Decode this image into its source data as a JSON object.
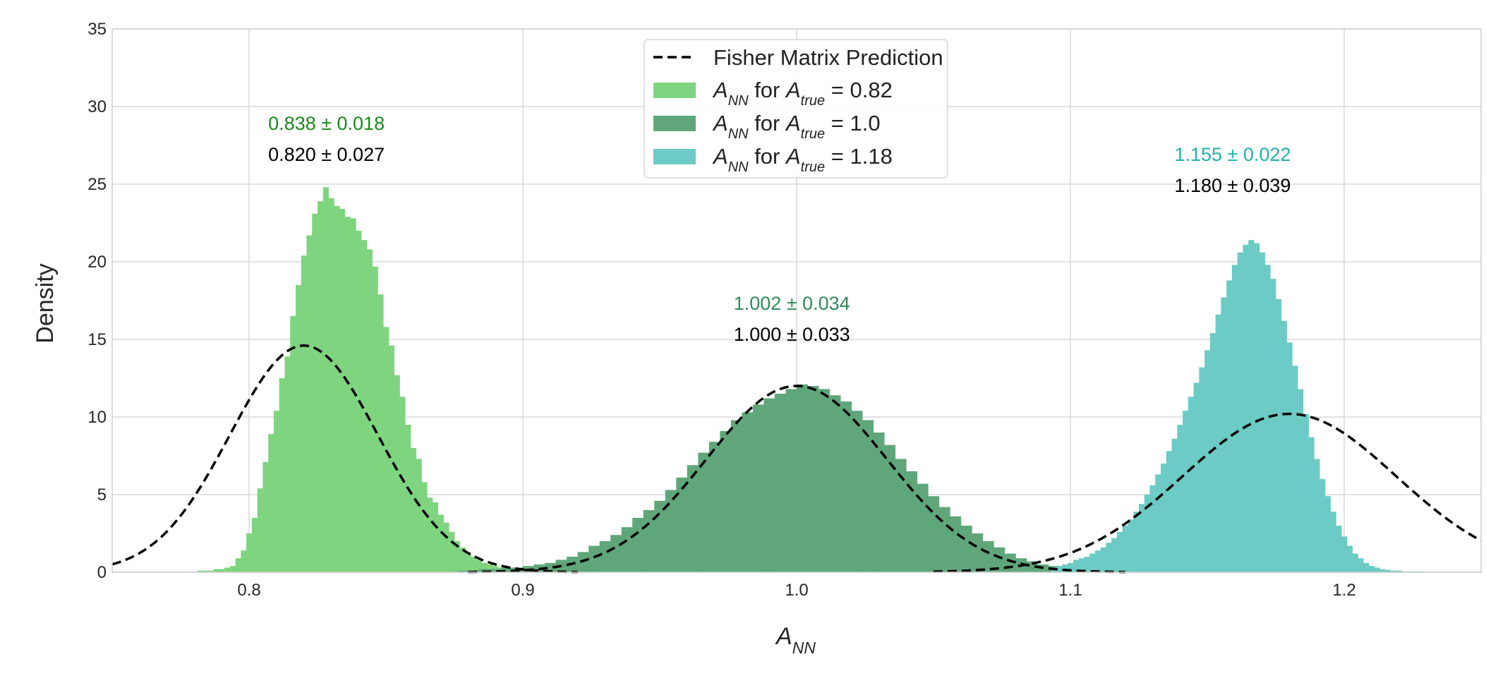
{
  "chart_data": {
    "type": "bar",
    "xlabel": "A_NN",
    "ylabel": "Density",
    "xlim": [
      0.75,
      1.25
    ],
    "ylim": [
      0,
      35
    ],
    "grid": true,
    "x_ticks": [
      "0.8",
      "0.9",
      "1.0",
      "1.1",
      "1.2"
    ],
    "x_tick_values": [
      0.8,
      0.9,
      1.0,
      1.1,
      1.2
    ],
    "y_ticks": [
      "0",
      "5",
      "10",
      "15",
      "20",
      "25",
      "30",
      "35"
    ],
    "y_tick_values": [
      0,
      5,
      10,
      15,
      20,
      25,
      30,
      35
    ],
    "legend": {
      "position": "top-center",
      "entries": [
        {
          "label": "Fisher Matrix Prediction",
          "style": "dashed-line",
          "color": "#000000"
        },
        {
          "label": "A_NN for A_true = 0.82",
          "style": "patch",
          "color": "#7fd47f"
        },
        {
          "label": "A_NN for A_true = 1.0",
          "style": "patch",
          "color": "#5fa77a"
        },
        {
          "label": "A_NN for A_true = 1.18",
          "style": "patch",
          "color": "#6ccbc4"
        }
      ]
    },
    "histograms": [
      {
        "color": "#7fd47f",
        "bin_width": 0.002,
        "x": [
          0.782,
          0.784,
          0.786,
          0.788,
          0.79,
          0.792,
          0.794,
          0.796,
          0.798,
          0.8,
          0.802,
          0.804,
          0.806,
          0.808,
          0.81,
          0.812,
          0.814,
          0.816,
          0.818,
          0.82,
          0.822,
          0.824,
          0.826,
          0.828,
          0.83,
          0.832,
          0.834,
          0.836,
          0.838,
          0.84,
          0.842,
          0.844,
          0.846,
          0.848,
          0.85,
          0.852,
          0.854,
          0.856,
          0.858,
          0.86,
          0.862,
          0.864,
          0.866,
          0.868,
          0.87,
          0.872,
          0.874,
          0.876,
          0.878,
          0.88,
          0.882,
          0.884,
          0.886,
          0.888,
          0.89,
          0.892,
          0.894,
          0.896,
          0.898,
          0.9
        ],
        "values": [
          0.1,
          0.1,
          0.1,
          0.2,
          0.2,
          0.3,
          0.4,
          0.9,
          1.4,
          2.5,
          3.5,
          5.4,
          7.1,
          8.9,
          10.4,
          12.5,
          13.9,
          16.5,
          18.5,
          20.4,
          21.7,
          23.1,
          23.9,
          24.8,
          24.1,
          23.6,
          23.4,
          22.9,
          22.8,
          22.0,
          21.4,
          20.8,
          19.7,
          17.9,
          15.8,
          14.6,
          12.7,
          11.3,
          9.5,
          8.0,
          7.3,
          5.8,
          4.8,
          4.5,
          3.7,
          3.2,
          2.6,
          2.0,
          1.6,
          1.3,
          1.0,
          0.8,
          0.6,
          0.5,
          0.4,
          0.3,
          0.2,
          0.2,
          0.1,
          0.1
        ]
      },
      {
        "color": "#5fa77a",
        "bin_width": 0.004,
        "x": [
          0.878,
          0.882,
          0.886,
          0.89,
          0.894,
          0.898,
          0.902,
          0.906,
          0.91,
          0.914,
          0.918,
          0.922,
          0.926,
          0.93,
          0.934,
          0.938,
          0.942,
          0.946,
          0.95,
          0.954,
          0.958,
          0.962,
          0.966,
          0.97,
          0.974,
          0.978,
          0.982,
          0.986,
          0.99,
          0.994,
          0.998,
          1.002,
          1.006,
          1.01,
          1.014,
          1.018,
          1.022,
          1.026,
          1.03,
          1.034,
          1.038,
          1.042,
          1.046,
          1.05,
          1.054,
          1.058,
          1.062,
          1.066,
          1.07,
          1.074,
          1.078,
          1.082,
          1.086,
          1.09,
          1.094,
          1.098,
          1.102,
          1.106,
          1.11,
          1.114,
          1.118
        ],
        "values": [
          0.1,
          0.1,
          0.2,
          0.2,
          0.3,
          0.3,
          0.4,
          0.5,
          0.6,
          0.8,
          1.0,
          1.3,
          1.7,
          2.0,
          2.4,
          2.9,
          3.5,
          4.0,
          4.6,
          5.3,
          6.1,
          6.9,
          7.7,
          8.4,
          9.1,
          9.8,
          10.3,
          10.8,
          11.2,
          11.5,
          11.8,
          12.1,
          12.0,
          11.8,
          11.4,
          11.0,
          10.4,
          9.8,
          9.0,
          8.2,
          7.3,
          6.5,
          5.7,
          4.9,
          4.2,
          3.6,
          3.0,
          2.5,
          2.0,
          1.6,
          1.2,
          0.9,
          0.7,
          0.5,
          0.4,
          0.3,
          0.2,
          0.2,
          0.1,
          0.1,
          0.1
        ]
      },
      {
        "color": "#6ccbc4",
        "bin_width": 0.002,
        "x": [
          1.094,
          1.096,
          1.098,
          1.1,
          1.102,
          1.104,
          1.106,
          1.108,
          1.11,
          1.112,
          1.114,
          1.116,
          1.118,
          1.12,
          1.122,
          1.124,
          1.126,
          1.128,
          1.13,
          1.132,
          1.134,
          1.136,
          1.138,
          1.14,
          1.142,
          1.144,
          1.146,
          1.148,
          1.15,
          1.152,
          1.154,
          1.156,
          1.158,
          1.16,
          1.162,
          1.164,
          1.166,
          1.168,
          1.17,
          1.172,
          1.174,
          1.176,
          1.178,
          1.18,
          1.182,
          1.184,
          1.186,
          1.188,
          1.19,
          1.192,
          1.194,
          1.196,
          1.198,
          1.2,
          1.202,
          1.204,
          1.206,
          1.208,
          1.21,
          1.212,
          1.214,
          1.216,
          1.218,
          1.22,
          1.222,
          1.224,
          1.226,
          1.228
        ],
        "values": [
          0.3,
          0.4,
          0.5,
          0.6,
          0.8,
          0.9,
          1.0,
          1.2,
          1.4,
          1.6,
          1.9,
          2.2,
          2.6,
          3.0,
          3.4,
          3.9,
          4.4,
          5.0,
          5.6,
          6.3,
          7.0,
          7.8,
          8.6,
          9.5,
          10.4,
          11.3,
          12.2,
          13.2,
          14.3,
          15.4,
          16.6,
          17.7,
          18.8,
          19.8,
          20.6,
          21.1,
          21.4,
          21.2,
          20.6,
          19.8,
          18.9,
          17.6,
          16.2,
          14.8,
          13.3,
          11.8,
          10.2,
          8.7,
          7.3,
          6.0,
          4.9,
          3.9,
          3.0,
          2.3,
          1.7,
          1.2,
          0.9,
          0.6,
          0.4,
          0.3,
          0.2,
          0.15,
          0.1,
          0.1,
          0.05,
          0.05,
          0.05,
          0.05
        ]
      }
    ],
    "fisher_curves": [
      {
        "mean": 0.82,
        "sigma": 0.027,
        "peak": 14.6,
        "range": [
          0.75,
          0.92
        ]
      },
      {
        "mean": 1.0,
        "sigma": 0.033,
        "peak": 12.0,
        "range": [
          0.88,
          1.12
        ]
      },
      {
        "mean": 1.18,
        "sigma": 0.039,
        "peak": 10.2,
        "range": [
          1.05,
          1.25
        ]
      }
    ],
    "annotations": [
      {
        "text": "0.838 ± 0.018",
        "color": "#1a8a1a",
        "x": 0.807,
        "y": 28.5
      },
      {
        "text": "0.820 ± 0.027",
        "color": "#000000",
        "x": 0.807,
        "y": 26.5
      },
      {
        "text": "1.002 ± 0.034",
        "color": "#2e8b57",
        "x": 0.977,
        "y": 16.9
      },
      {
        "text": "1.000 ± 0.033",
        "color": "#000000",
        "x": 0.977,
        "y": 14.9
      },
      {
        "text": "1.155 ± 0.022",
        "color": "#20b2aa",
        "x": 1.138,
        "y": 26.5
      },
      {
        "text": "1.180 ± 0.039",
        "color": "#000000",
        "x": 1.138,
        "y": 24.5
      }
    ]
  }
}
